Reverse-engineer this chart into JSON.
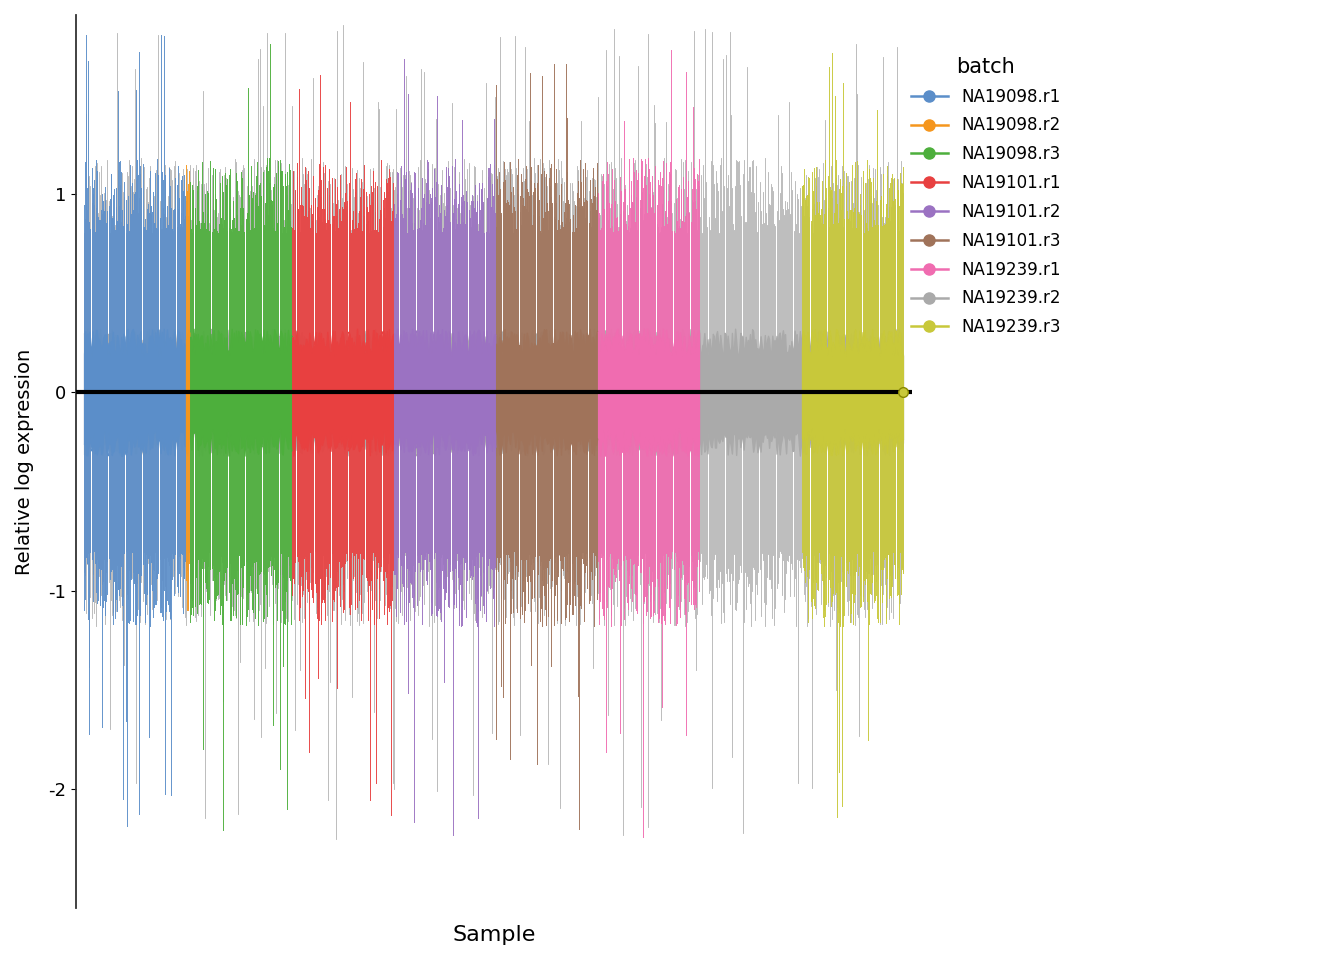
{
  "title": "",
  "xlabel": "Sample",
  "ylabel": "Relative log expression",
  "ylim": [
    -2.6,
    1.9
  ],
  "yticks": [
    -2,
    -1,
    0,
    1
  ],
  "background_color": "#ffffff",
  "batches": [
    {
      "name": "NA19098.r1",
      "color": "#5B8EC9",
      "n_cells": 96
    },
    {
      "name": "NA19098.r2",
      "color": "#F5961D",
      "n_cells": 4
    },
    {
      "name": "NA19098.r3",
      "color": "#4DAF3C",
      "n_cells": 96
    },
    {
      "name": "NA19101.r1",
      "color": "#E84040",
      "n_cells": 96
    },
    {
      "name": "NA19101.r2",
      "color": "#9B72C2",
      "n_cells": 96
    },
    {
      "name": "NA19101.r3",
      "color": "#A0735A",
      "n_cells": 96
    },
    {
      "name": "NA19239.r1",
      "color": "#F06CB0",
      "n_cells": 96
    },
    {
      "name": "NA19239.r2",
      "color": "#AAAAAA",
      "n_cells": 96
    },
    {
      "name": "NA19239.r3",
      "color": "#C8C83A",
      "n_cells": 96
    }
  ],
  "legend_colors": [
    "#5B8EC9",
    "#F5961D",
    "#4DAF3C",
    "#E84040",
    "#9B72C2",
    "#A0735A",
    "#F06CB0",
    "#AAAAAA",
    "#C8C83A"
  ],
  "legend_labels": [
    "NA19098.r1",
    "NA19098.r2",
    "NA19098.r3",
    "NA19101.r1",
    "NA19101.r2",
    "NA19101.r3",
    "NA19239.r1",
    "NA19239.r2",
    "NA19239.r3"
  ],
  "median_color": "#000000",
  "median_linewidth": 3.0,
  "seed": 42,
  "gray_color": "#AAAAAA",
  "total_cells": 772
}
